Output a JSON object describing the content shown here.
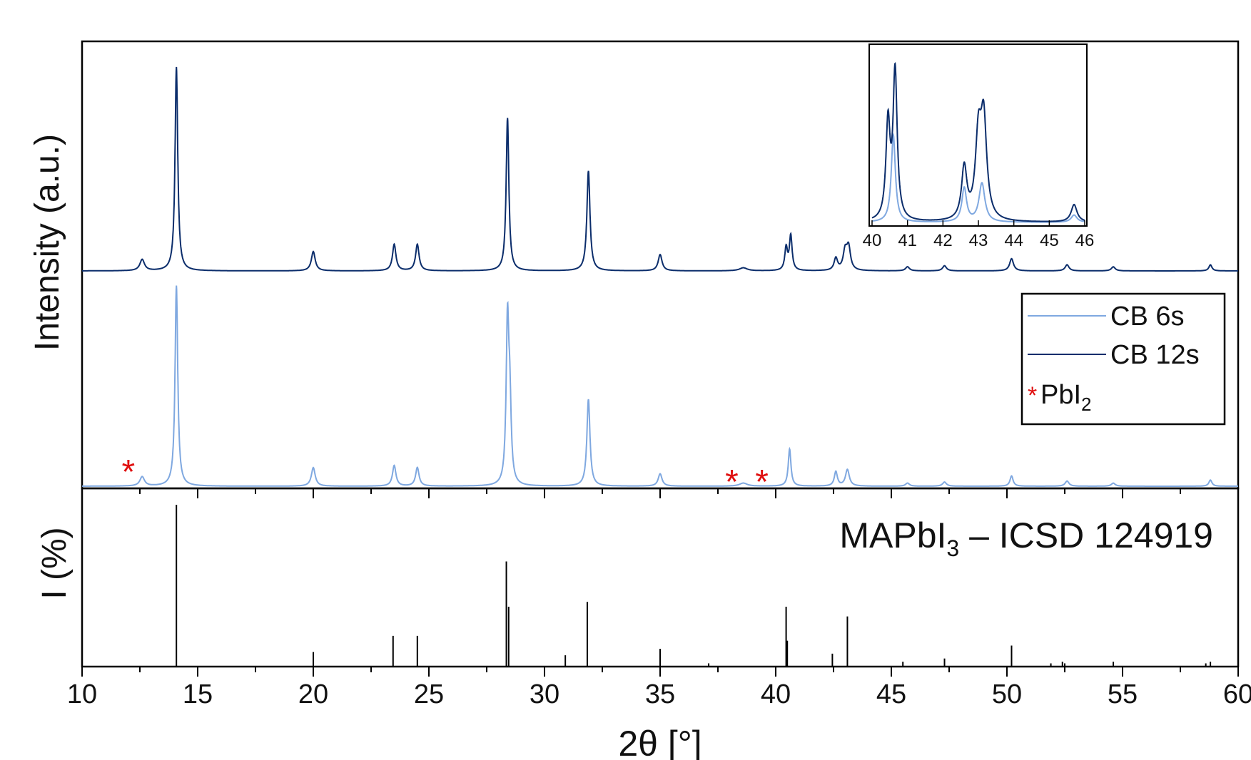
{
  "chart_data": {
    "type": "line",
    "xlabel": "2θ [°]",
    "xlim": [
      10,
      60
    ],
    "x_ticks": [
      "10",
      "15",
      "20",
      "25",
      "30",
      "35",
      "40",
      "45",
      "50",
      "55",
      "60"
    ],
    "grid": false,
    "top_panel": {
      "ylabel": "Intensity (a.u.)",
      "legend_position": "right",
      "legend": [
        {
          "label": "CB 6s",
          "color": "#7fa8e0"
        },
        {
          "label": "CB 12s",
          "color": "#0b2d6b"
        },
        {
          "label": "PbI",
          "subscript": "2",
          "marker": "*",
          "marker_color": "#e01010"
        }
      ],
      "series": [
        {
          "name": "CB 6s",
          "color": "#7fa8e0",
          "baseline": 0,
          "peaks": [
            [
              12.6,
              4.5,
              0.12
            ],
            [
              14.08,
              97,
              0.07
            ],
            [
              20.0,
              9,
              0.1
            ],
            [
              23.5,
              10,
              0.09
            ],
            [
              24.5,
              9,
              0.09
            ],
            [
              28.4,
              77,
              0.07
            ],
            [
              28.5,
              35,
              0.07
            ],
            [
              31.9,
              42,
              0.08
            ],
            [
              35.0,
              6,
              0.1
            ],
            [
              38.6,
              1.5,
              0.2
            ],
            [
              40.6,
              18,
              0.07
            ],
            [
              42.6,
              7,
              0.08
            ],
            [
              43.1,
              8,
              0.1
            ],
            [
              45.7,
              1.5,
              0.1
            ],
            [
              47.3,
              2,
              0.1
            ],
            [
              50.2,
              5,
              0.08
            ],
            [
              52.6,
              2.5,
              0.1
            ],
            [
              54.6,
              1.5,
              0.1
            ],
            [
              58.8,
              3,
              0.08
            ]
          ]
        },
        {
          "name": "CB 12s",
          "color": "#0b2d6b",
          "baseline": 0,
          "peaks": [
            [
              12.6,
              5.5,
              0.12
            ],
            [
              14.08,
              100,
              0.07
            ],
            [
              20.0,
              9.5,
              0.1
            ],
            [
              23.5,
              13,
              0.09
            ],
            [
              24.5,
              13,
              0.09
            ],
            [
              28.4,
              75,
              0.07
            ],
            [
              31.9,
              49,
              0.08
            ],
            [
              35.0,
              8,
              0.1
            ],
            [
              38.6,
              1.5,
              0.2
            ],
            [
              40.45,
              11,
              0.07
            ],
            [
              40.65,
              17,
              0.07
            ],
            [
              42.6,
              6,
              0.09
            ],
            [
              43.0,
              9,
              0.1
            ],
            [
              43.15,
              11,
              0.1
            ],
            [
              45.7,
              2,
              0.1
            ],
            [
              47.3,
              2.5,
              0.1
            ],
            [
              50.2,
              6,
              0.1
            ],
            [
              52.6,
              3,
              0.1
            ],
            [
              54.6,
              2,
              0.1
            ],
            [
              58.8,
              3,
              0.08
            ]
          ]
        }
      ],
      "pbi2_star_positions": [
        12.0,
        38.1,
        39.4
      ]
    },
    "inset": {
      "xlim": [
        40,
        46
      ],
      "x_ticks": [
        "40",
        "41",
        "42",
        "43",
        "44",
        "45",
        "46"
      ]
    },
    "bottom_panel": {
      "ylabel": "I (%)",
      "annotation": {
        "prefix": "MAPbI",
        "subscript": "3",
        "suffix": " – ICSD 124919"
      },
      "reference_sticks": [
        [
          14.08,
          100
        ],
        [
          20.0,
          9
        ],
        [
          23.45,
          19
        ],
        [
          24.5,
          19
        ],
        [
          28.35,
          65
        ],
        [
          28.45,
          37
        ],
        [
          30.9,
          7
        ],
        [
          31.85,
          40
        ],
        [
          35.0,
          11
        ],
        [
          37.1,
          2
        ],
        [
          40.45,
          37
        ],
        [
          40.5,
          16
        ],
        [
          42.45,
          8
        ],
        [
          43.1,
          31
        ],
        [
          45.5,
          3
        ],
        [
          47.3,
          5
        ],
        [
          50.2,
          13
        ],
        [
          51.9,
          2
        ],
        [
          52.4,
          3
        ],
        [
          52.5,
          2
        ],
        [
          54.6,
          3
        ],
        [
          58.6,
          2
        ],
        [
          58.8,
          3
        ]
      ]
    }
  }
}
